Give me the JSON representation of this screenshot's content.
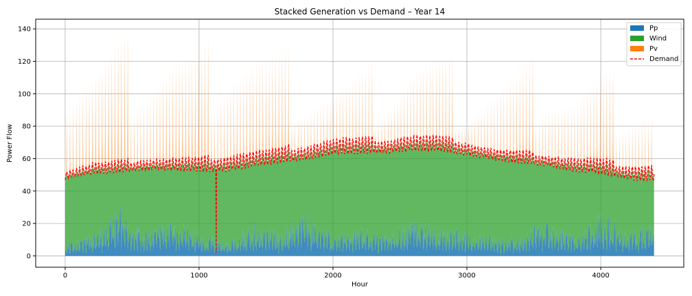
{
  "chart_data": {
    "type": "area",
    "title": "Stacked Generation vs Demand – Year 14",
    "xlabel": "Hour",
    "ylabel": "Power Flow",
    "xlim": [
      -220,
      4620
    ],
    "ylim": [
      -7,
      146
    ],
    "x_ticks": [
      0,
      1000,
      2000,
      3000,
      4000
    ],
    "y_ticks": [
      0,
      20,
      40,
      60,
      80,
      100,
      120,
      140
    ],
    "x_tick_labels": [
      "0",
      "1000",
      "2000",
      "3000",
      "4000"
    ],
    "y_tick_labels": [
      "0",
      "20",
      "40",
      "60",
      "80",
      "100",
      "120",
      "140"
    ],
    "grid": true,
    "legend_position": "top-right",
    "colors": {
      "Pp": "#1f77b4",
      "Wind": "#2ca02c",
      "Pv": "#ff7f0e",
      "Demand": "#ff0000"
    },
    "series": [
      {
        "name": "Pp",
        "kind": "stacked-area",
        "color": "#1f77b4"
      },
      {
        "name": "Wind",
        "kind": "stacked-area",
        "color": "#2ca02c"
      },
      {
        "name": "Pv",
        "kind": "stacked-area",
        "color": "#ff7f0e"
      },
      {
        "name": "Demand",
        "kind": "dashed-line",
        "color": "#ff0000"
      }
    ],
    "hours": [
      0,
      4400
    ],
    "demand_envelope": {
      "x": [
        0,
        200,
        400,
        600,
        800,
        1000,
        1200,
        1400,
        1600,
        1800,
        2000,
        2200,
        2400,
        2600,
        2800,
        3000,
        3200,
        3400,
        3600,
        3800,
        4000,
        4200,
        4400
      ],
      "low": [
        44,
        45,
        46,
        47,
        47,
        46,
        44,
        48,
        50,
        52,
        55,
        56,
        56,
        58,
        58,
        56,
        54,
        52,
        50,
        46,
        44,
        40,
        38
      ],
      "high": [
        52,
        57,
        58,
        60,
        60,
        60,
        62,
        64,
        66,
        68,
        72,
        72,
        72,
        74,
        73,
        70,
        66,
        64,
        62,
        60,
        59,
        56,
        56
      ]
    },
    "pv_peak_envelope": {
      "x": [
        0,
        200,
        400,
        600,
        800,
        1000,
        1200,
        1400,
        1600,
        1800,
        2000,
        2200,
        2400,
        2600,
        2800,
        3000,
        3200,
        3400,
        3600,
        3800,
        4000,
        4200,
        4400
      ],
      "peak": [
        105,
        110,
        118,
        115,
        120,
        112,
        122,
        120,
        112,
        105,
        100,
        100,
        105,
        115,
        110,
        98,
        100,
        102,
        108,
        95,
        100,
        95,
        90
      ]
    },
    "pp_base_envelope": {
      "x": [
        0,
        200,
        400,
        600,
        800,
        1000,
        1200,
        1400,
        1600,
        1800,
        2000,
        2200,
        2400,
        2600,
        2800,
        3000,
        3200,
        3400,
        3600,
        3800,
        4000,
        4200,
        4400
      ],
      "level": [
        6,
        8,
        20,
        10,
        18,
        10,
        6,
        14,
        10,
        18,
        8,
        12,
        8,
        16,
        12,
        10,
        8,
        8,
        16,
        8,
        18,
        10,
        14
      ]
    },
    "demand_outlier": {
      "x": 1130,
      "y": 2
    }
  }
}
